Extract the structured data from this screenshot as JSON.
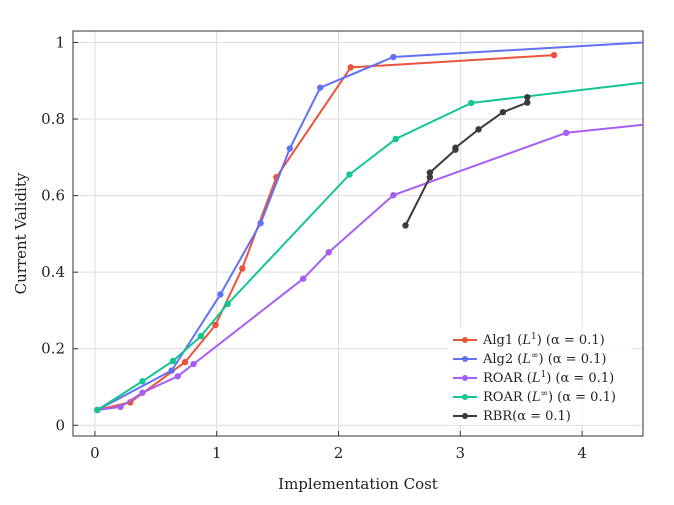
{
  "chart_data": {
    "type": "line",
    "title": "",
    "xlabel": "Implementation Cost",
    "ylabel": "Current Validity",
    "xlim": [
      -0.18,
      4.5
    ],
    "ylim": [
      -0.028,
      1.03
    ],
    "xticks": [
      0,
      1,
      2,
      3,
      4
    ],
    "xtick_labels": [
      "0",
      "1",
      "2",
      "3",
      "4"
    ],
    "yticks": [
      0,
      0.2,
      0.4,
      0.6,
      0.8,
      1
    ],
    "ytick_labels": [
      "0",
      "0.2",
      "0.4",
      "0.6",
      "0.8",
      "1"
    ],
    "grid": true,
    "legend_position": "bottom-right",
    "series": [
      {
        "name": "Alg1 (L1) (α = 0.1)",
        "label_parts": {
          "pre": "Alg1 (",
          "norm": "L",
          "sup": "1",
          "post": ") (α = 0.1)"
        },
        "color": "#e8553b",
        "points": [
          [
            0.02,
            0.04
          ],
          [
            0.29,
            0.06
          ],
          [
            0.74,
            0.165
          ],
          [
            0.99,
            0.262
          ],
          [
            1.21,
            0.41
          ],
          [
            1.49,
            0.648
          ],
          [
            2.1,
            0.935
          ],
          [
            3.77,
            0.967
          ]
        ]
      },
      {
        "name": "Alg2 (L∞) (α = 0.1)",
        "label_parts": {
          "pre": "Alg2 (",
          "norm": "L",
          "sup": "∞",
          "post": ") (α = 0.1)"
        },
        "color": "#6271f4",
        "points": [
          [
            0.02,
            0.04
          ],
          [
            0.63,
            0.143
          ],
          [
            1.03,
            0.342
          ],
          [
            1.36,
            0.528
          ],
          [
            1.6,
            0.723
          ],
          [
            1.85,
            0.882
          ],
          [
            2.45,
            0.962
          ],
          [
            4.5,
            1.0
          ]
        ]
      },
      {
        "name": "ROAR (L1) (α = 0.1)",
        "label_parts": {
          "pre": "ROAR (",
          "norm": "L",
          "sup": "1",
          "post": ") (α = 0.1)"
        },
        "color": "#a75ef2",
        "points": [
          [
            0.02,
            0.04
          ],
          [
            0.21,
            0.048
          ],
          [
            0.39,
            0.085
          ],
          [
            0.68,
            0.128
          ],
          [
            0.81,
            0.16
          ],
          [
            1.71,
            0.383
          ],
          [
            1.92,
            0.452
          ],
          [
            2.45,
            0.601
          ],
          [
            3.87,
            0.764
          ],
          [
            4.5,
            0.785
          ]
        ]
      },
      {
        "name": "ROAR (L∞) (α = 0.1)",
        "label_parts": {
          "pre": "ROAR (",
          "norm": "L",
          "sup": "∞",
          "post": ") (α = 0.1)"
        },
        "color": "#13c592",
        "points": [
          [
            0.02,
            0.04
          ],
          [
            0.39,
            0.115
          ],
          [
            0.64,
            0.168
          ],
          [
            0.87,
            0.233
          ],
          [
            1.09,
            0.317
          ],
          [
            2.09,
            0.655
          ],
          [
            2.47,
            0.748
          ],
          [
            3.09,
            0.842
          ],
          [
            4.5,
            0.895
          ]
        ]
      },
      {
        "name": "RBR(α = 0.1)",
        "label_parts": {
          "pre": "RBR(α = 0.1)",
          "norm": "",
          "sup": "",
          "post": ""
        },
        "color": "#3b3b3b",
        "points": [
          [
            2.55,
            0.522
          ],
          [
            2.75,
            0.648
          ],
          [
            2.75,
            0.66
          ],
          [
            2.96,
            0.72
          ],
          [
            2.96,
            0.725
          ],
          [
            3.15,
            0.773
          ],
          [
            3.35,
            0.818
          ],
          [
            3.55,
            0.843
          ],
          [
            3.55,
            0.857
          ]
        ]
      }
    ]
  }
}
